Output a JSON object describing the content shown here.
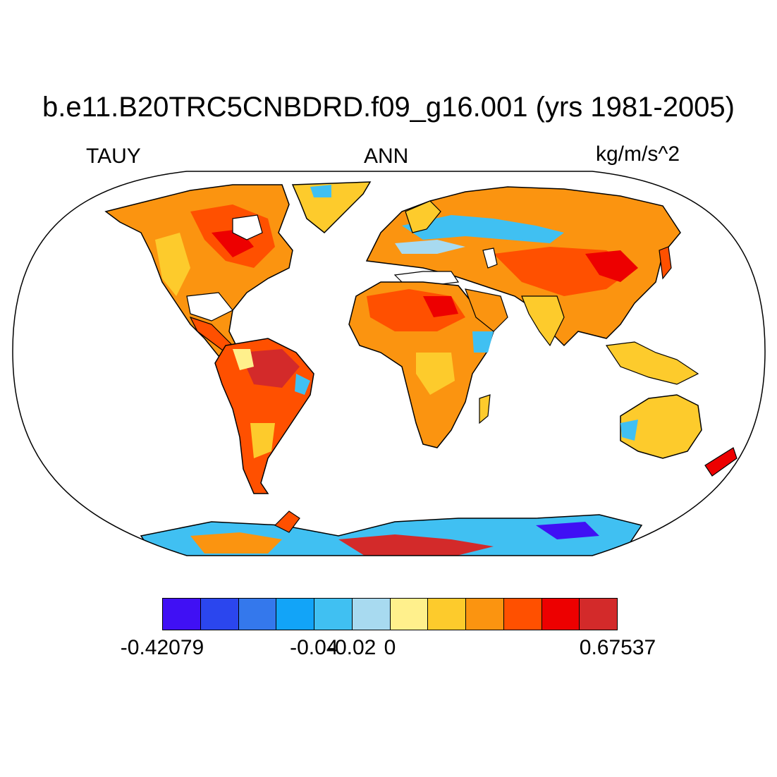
{
  "title": "b.e11.B20TRC5CNBDRD.f09_g16.001 (yrs 1981-2005)",
  "left_label": "TAUY",
  "center_label": "ANN",
  "right_label": "kg/m/s^2",
  "colorbar": {
    "colors": [
      "#4010f4",
      "#2b46ee",
      "#3478ec",
      "#12a4f8",
      "#40c0f2",
      "#a8daf0",
      "#fff08c",
      "#fdcb2c",
      "#fb9410",
      "#ff5000",
      "#ed0000",
      "#d32a2a"
    ],
    "tick_labels": [
      {
        "text": "-0.42079",
        "boundary": 0
      },
      {
        "text": "-0.04",
        "boundary": 4
      },
      {
        "text": "-0.02",
        "boundary": 5
      },
      {
        "text": "0",
        "boundary": 6
      },
      {
        "text": "0.67537",
        "boundary": 12
      }
    ]
  },
  "map": {
    "projection": "Robinson",
    "field": "TAUY annual mean",
    "ocean_fill": "#ffffff",
    "coastline_color": "#000000"
  }
}
